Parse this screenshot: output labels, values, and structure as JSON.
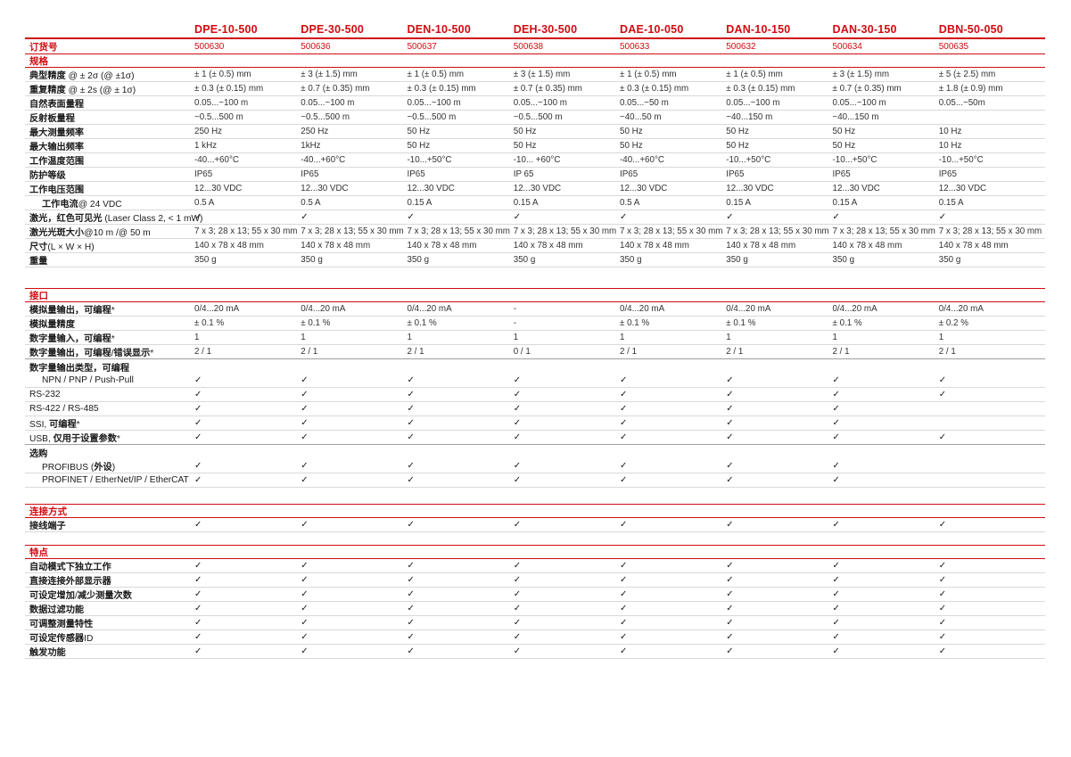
{
  "colors": {
    "accent_red": "#d10b11",
    "row_line": "#d9d9d9",
    "strong_line": "#a0a0a0",
    "text": "#333333"
  },
  "header": {
    "models": [
      "DPE-10-500",
      "DPE-30-500",
      "DEN-10-500",
      "DEH-30-500",
      "DAE-10-050",
      "DAN-10-150",
      "DAN-30-150",
      "DBN-50-050"
    ],
    "order_label": "订货号",
    "order_numbers": [
      "500630",
      "500636",
      "500637",
      "500638",
      "500633",
      "500632",
      "500634",
      "500635"
    ]
  },
  "checkmark_glyph": "✓",
  "sections": [
    {
      "id": "specifications",
      "title": "规格",
      "rows": [
        {
          "label": "典型精度 @ ± 2σ (@ ±1σ)",
          "values": [
            "± 1 (± 0.5) mm",
            "± 3 (± 1.5) mm",
            "± 1 (± 0.5) mm",
            "± 3 (± 1.5) mm",
            "± 1 (± 0.5) mm",
            "± 1 (± 0.5) mm",
            "± 3 (± 1.5) mm",
            "± 5 (± 2.5) mm"
          ]
        },
        {
          "label": "重复精度 @ ± 2s (@ ± 1σ)",
          "values": [
            "± 0.3 (± 0.15) mm",
            "± 0.7 (± 0.35) mm",
            "± 0.3 (± 0.15) mm",
            "± 0.7 (± 0.35) mm",
            "± 0.3 (± 0.15) mm",
            "± 0.3 (± 0.15) mm",
            "± 0.7 (± 0.35) mm",
            "± 1.8 (± 0.9) mm"
          ]
        },
        {
          "label": "自然表面量程",
          "values": [
            "0.05...~100 m",
            "0.05...~100 m",
            "0.05...~100 m",
            "0.05...~100 m",
            "0.05...~50 m",
            "0.05...~100 m",
            "0.05...~100 m",
            "0.05...~50m"
          ]
        },
        {
          "label": "反射板量程",
          "values": [
            "~0.5...500 m",
            "~0.5...500 m",
            "~0.5...500 m",
            "~0.5...500 m",
            "~40...50 m",
            "~40...150 m",
            "~40...150 m",
            ""
          ]
        },
        {
          "label": "最大测量频率",
          "values": [
            "250 Hz",
            "250 Hz",
            "50 Hz",
            "50 Hz",
            "50 Hz",
            "50 Hz",
            "50 Hz",
            "10 Hz"
          ]
        },
        {
          "label": "最大输出频率",
          "values": [
            "1 kHz",
            "1kHz",
            "50 Hz",
            "50 Hz",
            "50 Hz",
            "50 Hz",
            "50 Hz",
            "10 Hz"
          ]
        },
        {
          "label": "工作温度范围",
          "values": [
            "-40...+60°C",
            "-40...+60°C",
            "-10...+50°C",
            "-10... +60°C",
            "-40...+60°C",
            "-10...+50°C",
            "-10...+50°C",
            "-10...+50°C"
          ]
        },
        {
          "label": "防护等级",
          "values": [
            "IP65",
            "IP65",
            "IP65",
            "IP 65",
            "IP65",
            "IP65",
            "IP65",
            "IP65"
          ]
        },
        {
          "label": "工作电压范围",
          "values": [
            "12...30 VDC",
            "12...30 VDC",
            "12...30 VDC",
            "12...30 VDC",
            "12...30 VDC",
            "12...30 VDC",
            "12...30 VDC",
            "12...30 VDC"
          ]
        },
        {
          "label": "工作电流@ 24 VDC",
          "indent": true,
          "values": [
            "0.5 A",
            "0.5 A",
            "0.15 A",
            "0.15 A",
            "0.5 A",
            "0.15 A",
            "0.15 A",
            "0.15 A"
          ]
        },
        {
          "label": "激光，红色可见光 (Laser Class 2, < 1 mW)",
          "values": [
            "✓",
            "✓",
            "✓",
            "✓",
            "✓",
            "✓",
            "✓",
            "✓"
          ]
        },
        {
          "label": "激光光斑大小@10 m /@ 50 m",
          "values": [
            "7 x 3; 28 x 13; 55 x 30 mm",
            "7 x 3; 28 x 13; 55 x 30 mm",
            "7 x 3; 28 x 13; 55 x 30 mm",
            "7 x 3; 28 x 13; 55 x 30 mm",
            "7 x 3; 28 x 13; 55 x 30 mm",
            "7 x 3; 28 x 13; 55 x 30 mm",
            "7 x 3; 28 x 13; 55 x 30 mm",
            "7 x 3; 28 x 13; 55 x 30 mm"
          ]
        },
        {
          "label": "尺寸(L × W × H)",
          "values": [
            "140 x 78 x 48 mm",
            "140 x 78 x 48 mm",
            "140 x 78 x 48 mm",
            "140 x 78 x 48 mm",
            "140 x 78 x 48 mm",
            "140 x 78 x 48 mm",
            "140 x 78 x 48 mm",
            "140 x 78 x 48 mm"
          ]
        },
        {
          "label": "重量",
          "values": [
            "350 g",
            "350 g",
            "350 g",
            "350 g",
            "350 g",
            "350 g",
            "350 g",
            "350 g"
          ]
        }
      ]
    },
    {
      "id": "interface",
      "title": "接口",
      "rows": [
        {
          "label": "模拟量输出，可编程*",
          "values": [
            "0/4...20 mA",
            "0/4...20 mA",
            "0/4...20 mA",
            "-",
            "0/4...20 mA",
            "0/4...20 mA",
            "0/4...20 mA",
            "0/4...20 mA"
          ]
        },
        {
          "label": "模拟量精度",
          "values": [
            "± 0.1 %",
            "± 0.1 %",
            "± 0.1 %",
            "-",
            "± 0.1 %",
            "± 0.1 %",
            "± 0.1 %",
            "± 0.2 %"
          ]
        },
        {
          "label": "数字量输入，可编程*",
          "values": [
            "1",
            "1",
            "1",
            "1",
            "1",
            "1",
            "1",
            "1"
          ]
        },
        {
          "label": "数字量输出，可编程/错误显示*",
          "strong_divider": true,
          "values": [
            "2 / 1",
            "2 / 1",
            "2 / 1",
            "0 / 1",
            "2 / 1",
            "2 / 1",
            "2 / 1",
            "2 / 1"
          ]
        },
        {
          "label": "数字量输出类型，可编程",
          "group": true
        },
        {
          "label": "NPN / PNP / Push-Pull",
          "indent": true,
          "values": [
            "✓",
            "✓",
            "✓",
            "✓",
            "✓",
            "✓",
            "✓",
            "✓"
          ]
        },
        {
          "label": "RS-232",
          "values": [
            "✓",
            "✓",
            "✓",
            "✓",
            "✓",
            "✓",
            "✓",
            "✓"
          ]
        },
        {
          "label": "RS-422 / RS-485",
          "values": [
            "✓",
            "✓",
            "✓",
            "✓",
            "✓",
            "✓",
            "✓",
            ""
          ]
        },
        {
          "label": "SSI, 可编程*",
          "values": [
            "✓",
            "✓",
            "✓",
            "✓",
            "✓",
            "✓",
            "✓",
            ""
          ]
        },
        {
          "label": "USB, 仅用于设置参数*",
          "strong_divider": true,
          "values": [
            "✓",
            "✓",
            "✓",
            "✓",
            "✓",
            "✓",
            "✓",
            "✓"
          ]
        },
        {
          "label": "选购",
          "group": true
        },
        {
          "label": "PROFIBUS (外设)",
          "indent": true,
          "values": [
            "✓",
            "✓",
            "✓",
            "✓",
            "✓",
            "✓",
            "✓",
            ""
          ]
        },
        {
          "label": "PROFINET / EtherNet/IP / EtherCAT",
          "indent": true,
          "values": [
            "✓",
            "✓",
            "✓",
            "✓",
            "✓",
            "✓",
            "✓",
            ""
          ]
        }
      ]
    },
    {
      "id": "connection",
      "title": "连接方式",
      "rows": [
        {
          "label": "接线端子",
          "values": [
            "✓",
            "✓",
            "✓",
            "✓",
            "✓",
            "✓",
            "✓",
            "✓"
          ]
        }
      ]
    },
    {
      "id": "features",
      "title": "特点",
      "rows": [
        {
          "label": "自动模式下独立工作",
          "values": [
            "✓",
            "✓",
            "✓",
            "✓",
            "✓",
            "✓",
            "✓",
            "✓"
          ]
        },
        {
          "label": "直接连接外部显示器",
          "values": [
            "✓",
            "✓",
            "✓",
            "✓",
            "✓",
            "✓",
            "✓",
            "✓"
          ]
        },
        {
          "label": "可设定增加/减少测量次数",
          "values": [
            "✓",
            "✓",
            "✓",
            "✓",
            "✓",
            "✓",
            "✓",
            "✓"
          ]
        },
        {
          "label": "数据过滤功能",
          "values": [
            "✓",
            "✓",
            "✓",
            "✓",
            "✓",
            "✓",
            "✓",
            "✓"
          ]
        },
        {
          "label": "可调整测量特性",
          "values": [
            "✓",
            "✓",
            "✓",
            "✓",
            "✓",
            "✓",
            "✓",
            "✓"
          ]
        },
        {
          "label": "可设定传感器ID",
          "values": [
            "✓",
            "✓",
            "✓",
            "✓",
            "✓",
            "✓",
            "✓",
            "✓"
          ]
        },
        {
          "label": "触发功能",
          "values": [
            "✓",
            "✓",
            "✓",
            "✓",
            "✓",
            "✓",
            "✓",
            "✓"
          ]
        }
      ]
    }
  ]
}
